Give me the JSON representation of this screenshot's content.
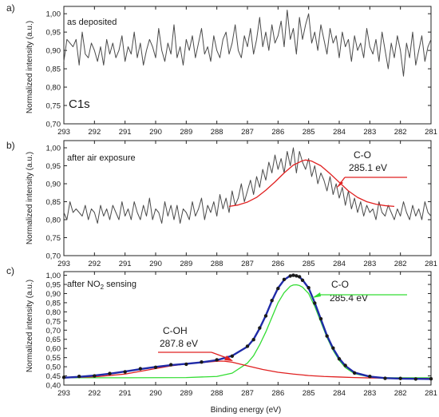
{
  "chart_data": [
    {
      "type": "line",
      "panel_label": "a)",
      "condition": "as deposited",
      "element_label": "C1s",
      "ylabel": "Normalized intensity (a.u.)",
      "xlabel": "",
      "xlim": [
        293,
        281
      ],
      "ylim": [
        0.7,
        1.02
      ],
      "x_reversed": true,
      "x_ticks": [
        "293",
        "292",
        "291",
        "290",
        "289",
        "288",
        "287",
        "286",
        "285",
        "284",
        "283",
        "282",
        "281"
      ],
      "y_ticks": [
        "0,70",
        "0,75",
        "0,80",
        "0,85",
        "0,90",
        "0,95",
        "1,00"
      ],
      "series": [
        {
          "style": "raw",
          "x": [
            293.0,
            292.9,
            292.8,
            292.7,
            292.6,
            292.5,
            292.4,
            292.3,
            292.2,
            292.1,
            292.0,
            291.9,
            291.8,
            291.7,
            291.6,
            291.5,
            291.4,
            291.3,
            291.2,
            291.1,
            291.0,
            290.9,
            290.8,
            290.7,
            290.6,
            290.5,
            290.4,
            290.3,
            290.2,
            290.1,
            290.0,
            289.9,
            289.8,
            289.7,
            289.6,
            289.5,
            289.4,
            289.3,
            289.2,
            289.1,
            289.0,
            288.9,
            288.8,
            288.7,
            288.6,
            288.5,
            288.4,
            288.3,
            288.2,
            288.1,
            288.0,
            287.9,
            287.8,
            287.7,
            287.6,
            287.5,
            287.4,
            287.3,
            287.2,
            287.1,
            287.0,
            286.9,
            286.8,
            286.7,
            286.6,
            286.5,
            286.4,
            286.3,
            286.2,
            286.1,
            286.0,
            285.9,
            285.8,
            285.7,
            285.6,
            285.5,
            285.4,
            285.3,
            285.2,
            285.1,
            285.0,
            284.9,
            284.8,
            284.7,
            284.6,
            284.5,
            284.4,
            284.3,
            284.2,
            284.1,
            284.0,
            283.9,
            283.8,
            283.7,
            283.6,
            283.5,
            283.4,
            283.3,
            283.2,
            283.1,
            283.0,
            282.9,
            282.8,
            282.7,
            282.6,
            282.5,
            282.4,
            282.3,
            282.2,
            282.1,
            282.0,
            281.9,
            281.8,
            281.7,
            281.6,
            281.5,
            281.4,
            281.3,
            281.2,
            281.1,
            281.0
          ],
          "y": [
            0.87,
            0.93,
            0.92,
            0.91,
            0.93,
            0.86,
            0.95,
            0.89,
            0.88,
            0.92,
            0.9,
            0.87,
            0.91,
            0.86,
            0.93,
            0.89,
            0.92,
            0.88,
            0.9,
            0.94,
            0.87,
            0.91,
            0.89,
            0.95,
            0.88,
            0.92,
            0.86,
            0.9,
            0.93,
            0.91,
            0.88,
            0.96,
            0.9,
            0.87,
            0.92,
            0.89,
            0.97,
            0.88,
            0.91,
            0.86,
            0.93,
            0.9,
            0.94,
            0.88,
            0.92,
            0.96,
            0.89,
            0.91,
            0.87,
            0.94,
            0.9,
            0.88,
            0.93,
            0.95,
            0.89,
            0.92,
            0.97,
            0.9,
            0.88,
            0.94,
            0.91,
            0.96,
            0.89,
            0.93,
            0.99,
            0.91,
            0.95,
            0.9,
            0.97,
            0.92,
            0.94,
            0.98,
            0.91,
            1.01,
            0.93,
            0.96,
            0.89,
            0.99,
            0.93,
            0.97,
            1.0,
            0.92,
            0.95,
            0.9,
            0.97,
            0.93,
            0.89,
            0.96,
            0.92,
            0.94,
            0.88,
            0.95,
            0.91,
            0.93,
            0.87,
            0.94,
            0.9,
            0.92,
            0.88,
            0.96,
            0.91,
            0.89,
            0.93,
            0.87,
            0.95,
            0.9,
            0.85,
            0.92,
            0.88,
            0.94,
            0.9,
            0.83,
            0.92,
            0.88,
            0.95,
            0.86,
            0.9,
            0.94,
            0.87,
            0.91,
            0.93
          ],
          "color": "#4a4a4a"
        }
      ]
    },
    {
      "type": "line",
      "panel_label": "b)",
      "condition": "after air exposure",
      "ylabel": "Normalized intensity (a.u.)",
      "xlabel": "",
      "xlim": [
        293,
        281
      ],
      "ylim": [
        0.7,
        1.02
      ],
      "x_reversed": true,
      "x_ticks": [
        "293",
        "292",
        "291",
        "290",
        "289",
        "288",
        "287",
        "286",
        "285",
        "284",
        "283",
        "282",
        "281"
      ],
      "y_ticks": [
        "0,70",
        "0,75",
        "0,80",
        "0,85",
        "0,90",
        "0,95",
        "1,00"
      ],
      "annotations": [
        {
          "label": "C-O",
          "value": "285.1 eV"
        }
      ],
      "series": [
        {
          "style": "raw",
          "x": [
            293.0,
            292.9,
            292.8,
            292.7,
            292.6,
            292.5,
            292.4,
            292.3,
            292.2,
            292.1,
            292.0,
            291.9,
            291.8,
            291.7,
            291.6,
            291.5,
            291.4,
            291.3,
            291.2,
            291.1,
            291.0,
            290.9,
            290.8,
            290.7,
            290.6,
            290.5,
            290.4,
            290.3,
            290.2,
            290.1,
            290.0,
            289.9,
            289.8,
            289.7,
            289.6,
            289.5,
            289.4,
            289.3,
            289.2,
            289.1,
            289.0,
            288.9,
            288.8,
            288.7,
            288.6,
            288.5,
            288.4,
            288.3,
            288.2,
            288.1,
            288.0,
            287.9,
            287.8,
            287.7,
            287.6,
            287.5,
            287.4,
            287.3,
            287.2,
            287.1,
            287.0,
            286.9,
            286.8,
            286.7,
            286.6,
            286.5,
            286.4,
            286.3,
            286.2,
            286.1,
            286.0,
            285.9,
            285.8,
            285.7,
            285.6,
            285.5,
            285.4,
            285.3,
            285.2,
            285.1,
            285.0,
            284.9,
            284.8,
            284.7,
            284.6,
            284.5,
            284.4,
            284.3,
            284.2,
            284.1,
            284.0,
            283.9,
            283.8,
            283.7,
            283.6,
            283.5,
            283.4,
            283.3,
            283.2,
            283.1,
            283.0,
            282.9,
            282.8,
            282.7,
            282.6,
            282.5,
            282.4,
            282.3,
            282.2,
            282.1,
            282.0,
            281.9,
            281.8,
            281.7,
            281.6,
            281.5,
            281.4,
            281.3,
            281.2,
            281.1,
            281.0
          ],
          "y": [
            0.82,
            0.8,
            0.85,
            0.82,
            0.83,
            0.82,
            0.81,
            0.84,
            0.8,
            0.83,
            0.82,
            0.79,
            0.84,
            0.81,
            0.83,
            0.8,
            0.84,
            0.82,
            0.8,
            0.85,
            0.81,
            0.83,
            0.8,
            0.85,
            0.82,
            0.8,
            0.84,
            0.81,
            0.86,
            0.8,
            0.83,
            0.82,
            0.79,
            0.85,
            0.81,
            0.84,
            0.8,
            0.84,
            0.79,
            0.83,
            0.82,
            0.8,
            0.85,
            0.81,
            0.83,
            0.86,
            0.8,
            0.84,
            0.82,
            0.85,
            0.81,
            0.87,
            0.83,
            0.86,
            0.82,
            0.88,
            0.84,
            0.86,
            0.9,
            0.85,
            0.88,
            0.91,
            0.87,
            0.92,
            0.89,
            0.94,
            0.91,
            0.96,
            0.93,
            0.98,
            0.94,
            0.97,
            0.93,
            0.99,
            0.95,
            1.0,
            0.93,
            0.99,
            0.96,
            0.94,
            0.97,
            0.92,
            0.95,
            0.9,
            0.93,
            0.91,
            0.88,
            0.92,
            0.87,
            0.9,
            0.86,
            0.89,
            0.84,
            0.88,
            0.83,
            0.86,
            0.82,
            0.85,
            0.81,
            0.84,
            0.82,
            0.83,
            0.8,
            0.85,
            0.82,
            0.81,
            0.84,
            0.82,
            0.8,
            0.83,
            0.81,
            0.85,
            0.82,
            0.8,
            0.84,
            0.81,
            0.83,
            0.8,
            0.85,
            0.82,
            0.81
          ],
          "color": "#4a4a4a"
        },
        {
          "style": "fit",
          "x": [
            287.6,
            287.3,
            287.0,
            286.7,
            286.4,
            286.1,
            285.8,
            285.5,
            285.2,
            285.1,
            284.9,
            284.6,
            284.3,
            284.0,
            283.7,
            283.4,
            283.1,
            282.8,
            282.5,
            282.2
          ],
          "y": [
            0.837,
            0.841,
            0.849,
            0.862,
            0.882,
            0.905,
            0.93,
            0.952,
            0.964,
            0.966,
            0.963,
            0.95,
            0.928,
            0.904,
            0.88,
            0.862,
            0.85,
            0.843,
            0.839,
            0.837
          ],
          "color": "#e02020"
        }
      ]
    },
    {
      "type": "line",
      "panel_label": "c)",
      "condition": "after NO",
      "condition_sub": "2",
      "condition_tail": " sensing",
      "ylabel": "Normalized intensity (a.u.)",
      "xlabel": "Binding energy (eV)",
      "xlim": [
        293,
        281
      ],
      "ylim": [
        0.4,
        1.02
      ],
      "x_reversed": true,
      "x_ticks": [
        "293",
        "292",
        "291",
        "290",
        "289",
        "288",
        "287",
        "286",
        "285",
        "284",
        "283",
        "282",
        "281"
      ],
      "y_ticks": [
        "0,40",
        "0,45",
        "0,50",
        "0,55",
        "0,60",
        "0,65",
        "0,70",
        "0,75",
        "0,80",
        "0,85",
        "0,90",
        "0,95",
        "1,00"
      ],
      "annotations": [
        {
          "label": "C-O",
          "value": "285.4 eV"
        },
        {
          "label": "C-OH",
          "value": "287.8 eV"
        }
      ],
      "series": [
        {
          "style": "fit_envelope",
          "x": [
            293.0,
            292.5,
            292.0,
            291.5,
            291.0,
            290.5,
            290.0,
            289.5,
            289.0,
            288.5,
            288.0,
            287.5,
            287.0,
            286.8,
            286.6,
            286.4,
            286.2,
            286.0,
            285.8,
            285.6,
            285.5,
            285.4,
            285.3,
            285.2,
            285.0,
            284.8,
            284.6,
            284.4,
            284.2,
            284.0,
            283.8,
            283.5,
            283.0,
            282.5,
            282.0,
            281.5,
            281.0
          ],
          "y": [
            0.44,
            0.445,
            0.452,
            0.462,
            0.474,
            0.487,
            0.499,
            0.509,
            0.516,
            0.524,
            0.536,
            0.56,
            0.61,
            0.65,
            0.71,
            0.78,
            0.86,
            0.93,
            0.975,
            0.998,
            1.0,
            0.998,
            0.99,
            0.975,
            0.93,
            0.85,
            0.76,
            0.67,
            0.6,
            0.545,
            0.505,
            0.468,
            0.446,
            0.438,
            0.435,
            0.434,
            0.433
          ],
          "color": "#1f2aa8"
        },
        {
          "style": "data_points",
          "x": [
            293.0,
            292.5,
            292.0,
            291.5,
            291.0,
            290.5,
            290.0,
            289.5,
            289.0,
            288.5,
            288.0,
            287.5,
            287.0,
            286.8,
            286.6,
            286.4,
            286.2,
            286.0,
            285.8,
            285.6,
            285.5,
            285.4,
            285.3,
            285.2,
            285.0,
            284.8,
            284.6,
            284.4,
            284.2,
            284.0,
            283.8,
            283.5,
            283.0,
            282.5,
            282.0,
            281.5,
            281.0
          ],
          "y": [
            0.442,
            0.447,
            0.45,
            0.463,
            0.472,
            0.489,
            0.497,
            0.511,
            0.514,
            0.526,
            0.538,
            0.558,
            0.612,
            0.648,
            0.712,
            0.778,
            0.862,
            0.928,
            0.977,
            0.996,
            1.0,
            0.997,
            0.992,
            0.973,
            0.932,
            0.848,
            0.762,
            0.668,
            0.602,
            0.543,
            0.507,
            0.466,
            0.447,
            0.437,
            0.436,
            0.433,
            0.434
          ],
          "color": "#1a1a1a"
        },
        {
          "style": "component",
          "label": "C-O",
          "x": [
            293.0,
            291.0,
            289.0,
            288.0,
            287.5,
            287.0,
            286.8,
            286.6,
            286.4,
            286.2,
            286.0,
            285.8,
            285.6,
            285.5,
            285.4,
            285.3,
            285.2,
            285.0,
            284.8,
            284.6,
            284.4,
            284.2,
            284.0,
            283.8,
            283.5,
            283.0,
            282.5,
            282.0,
            281.0
          ],
          "y": [
            0.44,
            0.44,
            0.441,
            0.447,
            0.465,
            0.52,
            0.56,
            0.62,
            0.69,
            0.77,
            0.85,
            0.905,
            0.94,
            0.947,
            0.948,
            0.944,
            0.935,
            0.9,
            0.83,
            0.745,
            0.66,
            0.59,
            0.535,
            0.495,
            0.462,
            0.444,
            0.44,
            0.44,
            0.44
          ],
          "color": "#33dd33"
        },
        {
          "style": "component",
          "label": "C-OH",
          "x": [
            293.0,
            292.0,
            291.0,
            290.0,
            289.5,
            289.0,
            288.5,
            288.0,
            287.8,
            287.5,
            287.0,
            286.5,
            286.0,
            285.5,
            285.0,
            284.5,
            284.0,
            283.5,
            283.0,
            282.0,
            281.0
          ],
          "y": [
            0.44,
            0.445,
            0.46,
            0.49,
            0.505,
            0.515,
            0.523,
            0.53,
            0.531,
            0.525,
            0.505,
            0.485,
            0.47,
            0.46,
            0.452,
            0.447,
            0.444,
            0.441,
            0.439,
            0.437,
            0.436
          ],
          "color": "#e02020"
        }
      ]
    }
  ]
}
